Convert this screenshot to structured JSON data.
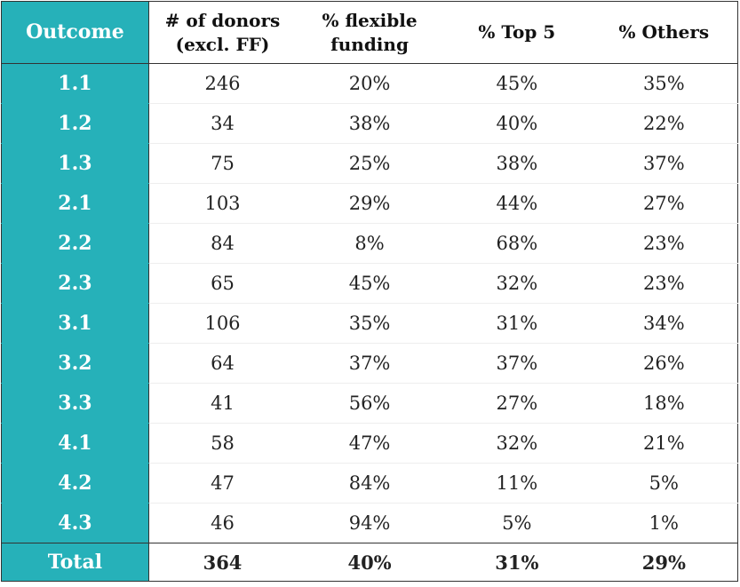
{
  "accent_color": "#26b1b9",
  "headers": [
    "Outcome",
    "# of donors\n(excl. FF)",
    "% flexible\nfunding",
    "% Top 5",
    "% Others"
  ],
  "rows": [
    [
      "1.1",
      "246",
      "20%",
      "45%",
      "35%"
    ],
    [
      "1.2",
      "34",
      "38%",
      "40%",
      "22%"
    ],
    [
      "1.3",
      "75",
      "25%",
      "38%",
      "37%"
    ],
    [
      "2.1",
      "103",
      "29%",
      "44%",
      "27%"
    ],
    [
      "2.2",
      "84",
      "8%",
      "68%",
      "23%"
    ],
    [
      "2.3",
      "65",
      "45%",
      "32%",
      "23%"
    ],
    [
      "3.1",
      "106",
      "35%",
      "31%",
      "34%"
    ],
    [
      "3.2",
      "64",
      "37%",
      "37%",
      "26%"
    ],
    [
      "3.3",
      "41",
      "56%",
      "27%",
      "18%"
    ],
    [
      "4.1",
      "58",
      "47%",
      "32%",
      "21%"
    ],
    [
      "4.2",
      "47",
      "84%",
      "11%",
      "5%"
    ],
    [
      "4.3",
      "46",
      "94%",
      "5%",
      "1%"
    ]
  ],
  "total": [
    "Total",
    "364",
    "40%",
    "31%",
    "29%"
  ]
}
